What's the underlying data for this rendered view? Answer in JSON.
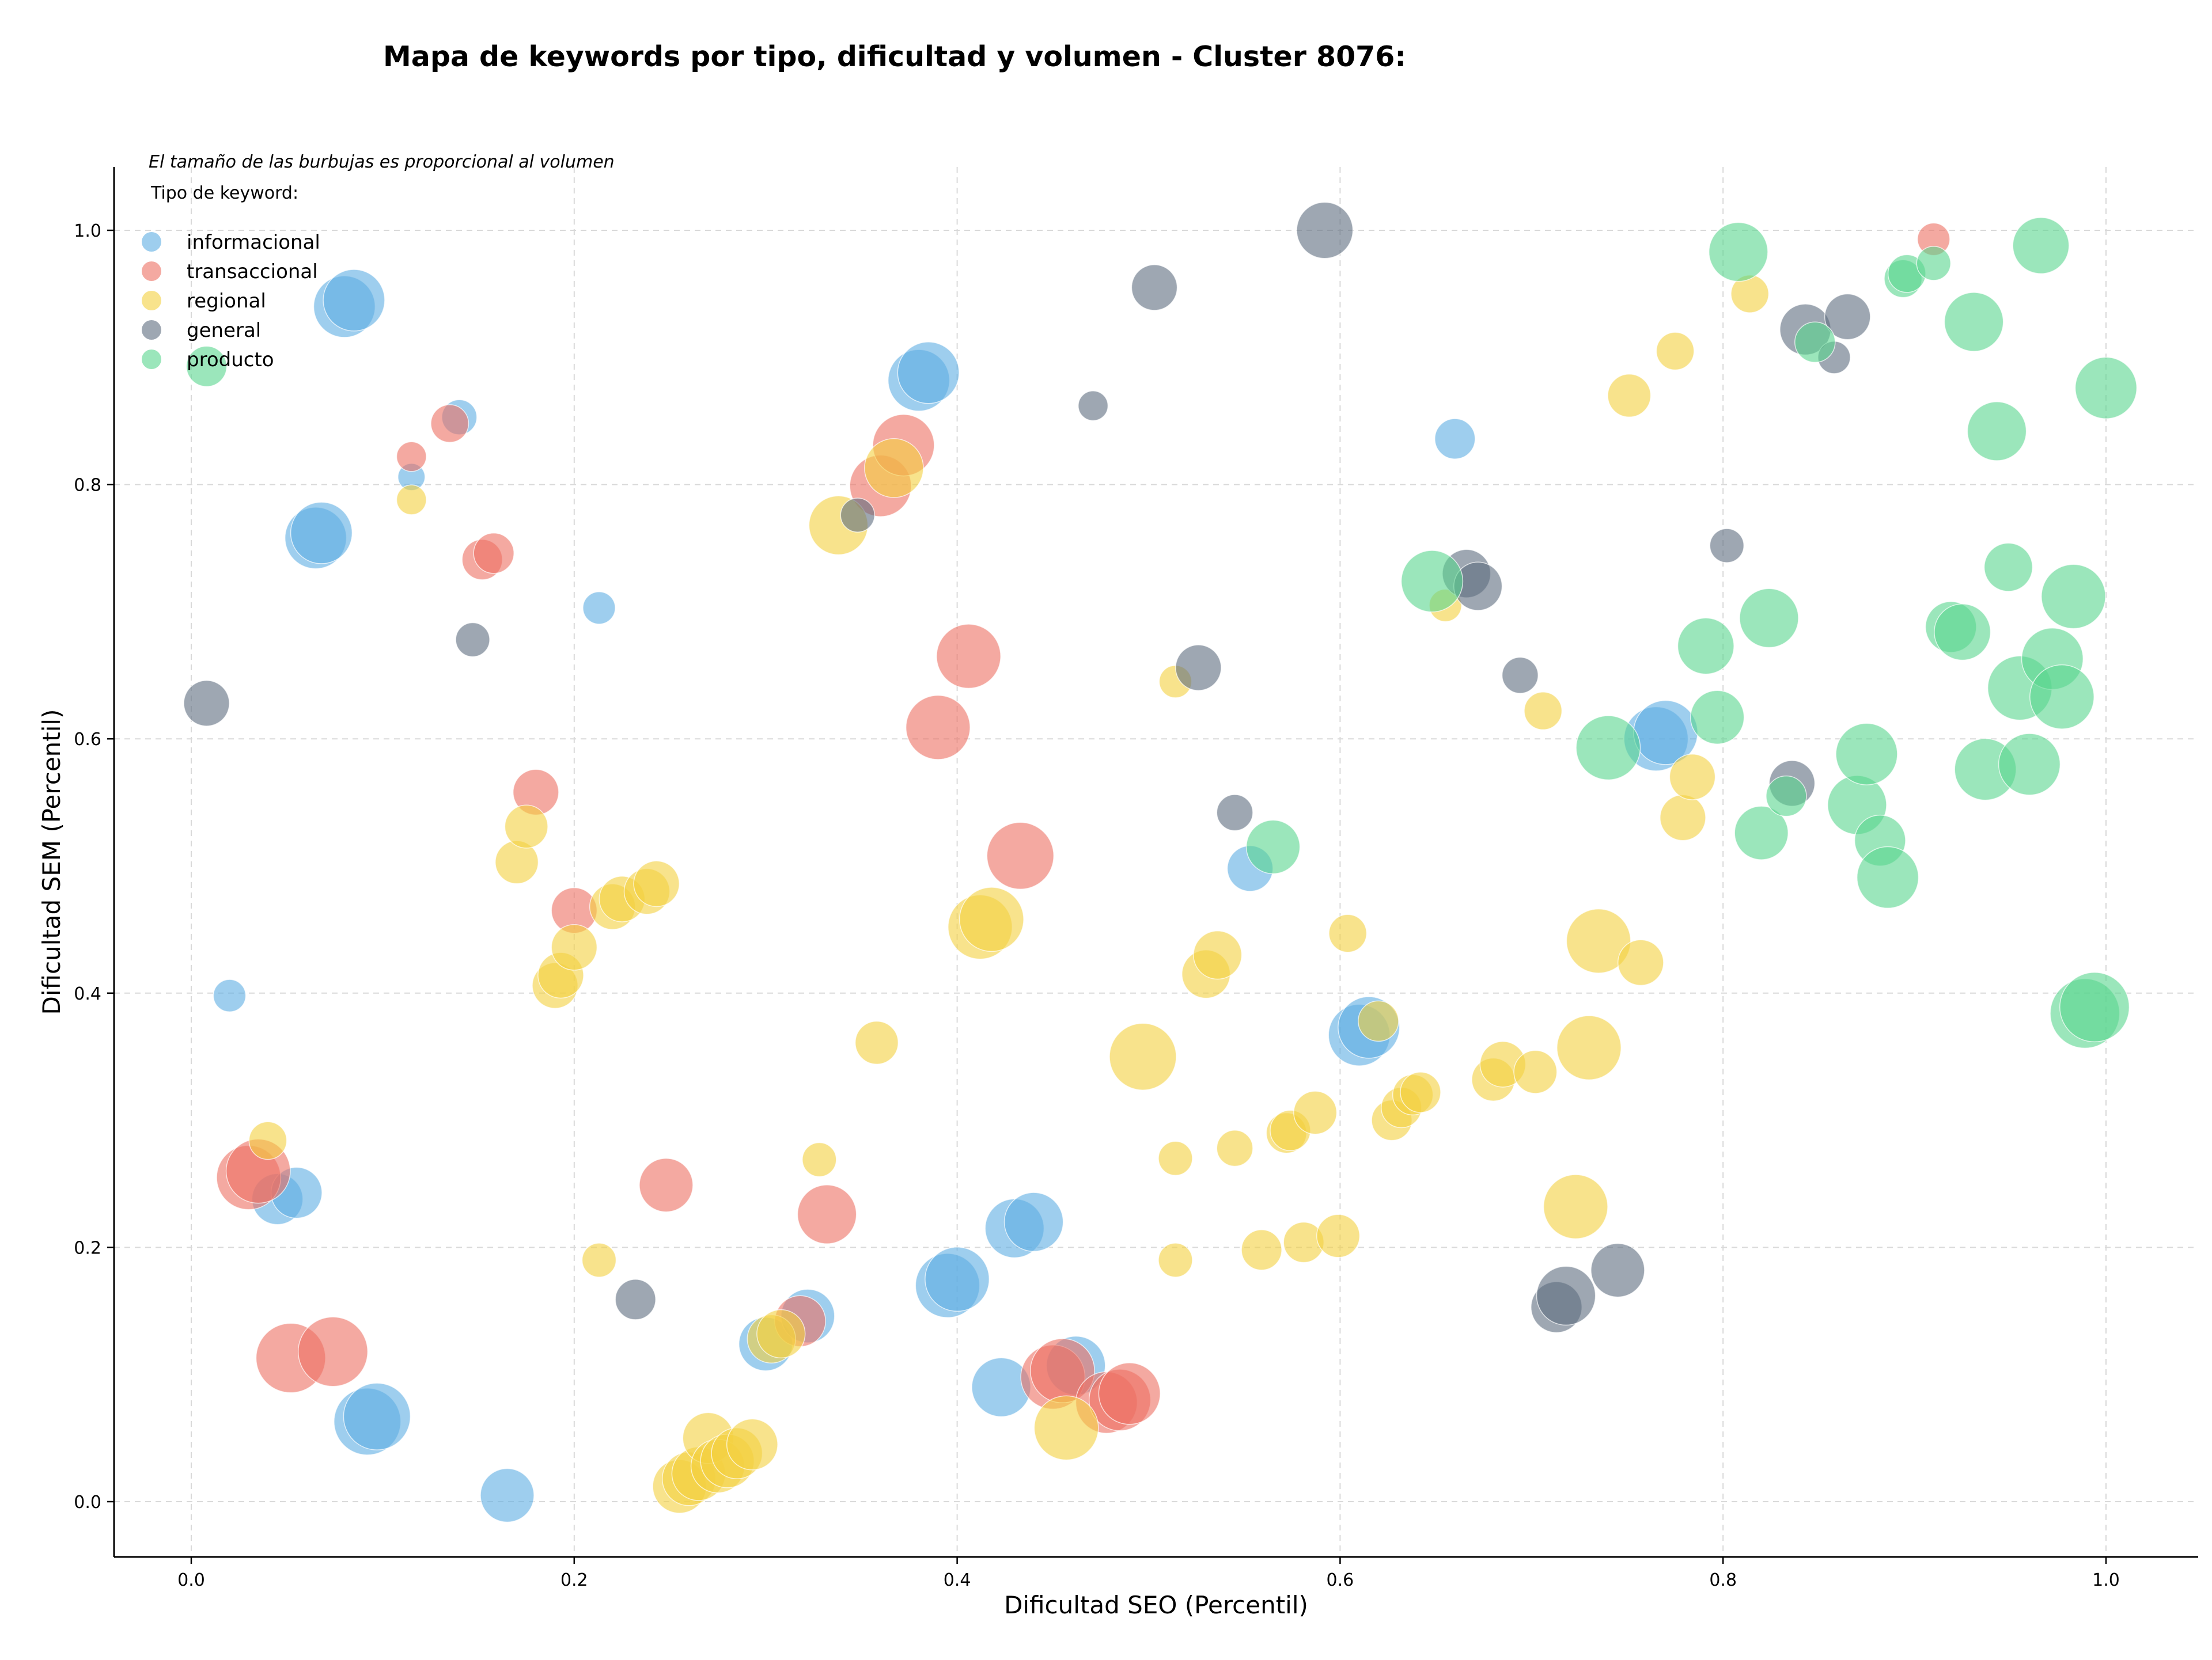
{
  "chart_data": {
    "type": "scatter",
    "title": "Mapa de keywords por tipo, dificultad y volumen - Cluster 8076:",
    "xlabel": "Dificultad SEO (Percentil)",
    "ylabel": "Dificultad SEM (Percentil)",
    "note": "El tamaño de las burbujas es proporcional al volumen",
    "legend_title": "Tipo de keyword:",
    "legend_position": "top-left",
    "xlim": [
      -0.04,
      1.05
    ],
    "ylim": [
      -0.043,
      1.05
    ],
    "x_ticks": [
      "0.0",
      "0.2",
      "0.4",
      "0.6",
      "0.8",
      "1.0"
    ],
    "y_ticks": [
      "0.0",
      "0.2",
      "0.4",
      "0.6",
      "0.8",
      "1.0"
    ],
    "grid": true,
    "series": [
      {
        "name": "informacional",
        "color": "#5DADE2",
        "points": [
          [
            0.08,
            0.94,
            0.9
          ],
          [
            0.085,
            0.945,
            0.9
          ],
          [
            0.14,
            0.853,
            0.4
          ],
          [
            0.115,
            0.806,
            0.25
          ],
          [
            0.065,
            0.758,
            0.9
          ],
          [
            0.068,
            0.762,
            0.9
          ],
          [
            0.213,
            0.703,
            0.35
          ],
          [
            0.02,
            0.398,
            0.35
          ],
          [
            0.045,
            0.238,
            0.7
          ],
          [
            0.055,
            0.243,
            0.7
          ],
          [
            0.092,
            0.063,
            1.0
          ],
          [
            0.097,
            0.067,
            1.0
          ],
          [
            0.165,
            0.005,
            0.75
          ],
          [
            0.38,
            0.882,
            0.9
          ],
          [
            0.385,
            0.888,
            0.9
          ],
          [
            0.66,
            0.836,
            0.5
          ],
          [
            0.3,
            0.124,
            0.75
          ],
          [
            0.322,
            0.146,
            0.75
          ],
          [
            0.395,
            0.17,
            0.95
          ],
          [
            0.4,
            0.175,
            0.95
          ],
          [
            0.43,
            0.215,
            0.85
          ],
          [
            0.44,
            0.22,
            0.85
          ],
          [
            0.423,
            0.09,
            0.85
          ],
          [
            0.462,
            0.107,
            0.85
          ],
          [
            0.553,
            0.498,
            0.6
          ],
          [
            0.61,
            0.367,
            0.9
          ],
          [
            0.615,
            0.373,
            0.9
          ],
          [
            0.765,
            0.6,
            0.95
          ],
          [
            0.77,
            0.605,
            0.95
          ]
        ]
      },
      {
        "name": "transaccional",
        "color": "#EC7063",
        "points": [
          [
            0.135,
            0.848,
            0.45
          ],
          [
            0.115,
            0.822,
            0.3
          ],
          [
            0.152,
            0.741,
            0.5
          ],
          [
            0.158,
            0.746,
            0.5
          ],
          [
            0.03,
            0.255,
            0.95
          ],
          [
            0.035,
            0.26,
            0.95
          ],
          [
            0.052,
            0.113,
            1.05
          ],
          [
            0.074,
            0.118,
            1.05
          ],
          [
            0.18,
            0.558,
            0.6
          ],
          [
            0.2,
            0.465,
            0.6
          ],
          [
            0.248,
            0.249,
            0.75
          ],
          [
            0.332,
            0.226,
            0.85
          ],
          [
            0.318,
            0.142,
            0.7
          ],
          [
            0.36,
            0.799,
            0.9
          ],
          [
            0.372,
            0.831,
            0.9
          ],
          [
            0.39,
            0.609,
            0.95
          ],
          [
            0.406,
            0.665,
            0.95
          ],
          [
            0.433,
            0.508,
            1.0
          ],
          [
            0.45,
            0.098,
            0.95
          ],
          [
            0.455,
            0.103,
            0.95
          ],
          [
            0.478,
            0.078,
            0.9
          ],
          [
            0.485,
            0.08,
            0.9
          ],
          [
            0.49,
            0.085,
            0.9
          ],
          [
            0.91,
            0.993,
            0.35
          ]
        ]
      },
      {
        "name": "regional",
        "color": "#F4D03F",
        "points": [
          [
            0.115,
            0.788,
            0.3
          ],
          [
            0.338,
            0.768,
            0.85
          ],
          [
            0.367,
            0.813,
            0.85
          ],
          [
            0.17,
            0.503,
            0.55
          ],
          [
            0.175,
            0.531,
            0.55
          ],
          [
            0.19,
            0.406,
            0.6
          ],
          [
            0.193,
            0.414,
            0.6
          ],
          [
            0.2,
            0.436,
            0.6
          ],
          [
            0.22,
            0.468,
            0.6
          ],
          [
            0.225,
            0.474,
            0.6
          ],
          [
            0.238,
            0.48,
            0.6
          ],
          [
            0.243,
            0.486,
            0.6
          ],
          [
            0.04,
            0.284,
            0.45
          ],
          [
            0.213,
            0.19,
            0.38
          ],
          [
            0.328,
            0.269,
            0.38
          ],
          [
            0.358,
            0.361,
            0.55
          ],
          [
            0.255,
            0.012,
            0.75
          ],
          [
            0.26,
            0.018,
            0.75
          ],
          [
            0.265,
            0.022,
            0.75
          ],
          [
            0.27,
            0.05,
            0.7
          ],
          [
            0.275,
            0.028,
            0.75
          ],
          [
            0.28,
            0.032,
            0.75
          ],
          [
            0.285,
            0.038,
            0.7
          ],
          [
            0.293,
            0.045,
            0.7
          ],
          [
            0.303,
            0.128,
            0.65
          ],
          [
            0.308,
            0.132,
            0.65
          ],
          [
            0.412,
            0.452,
            0.95
          ],
          [
            0.418,
            0.458,
            0.95
          ],
          [
            0.457,
            0.058,
            0.95
          ],
          [
            0.497,
            0.35,
            1.0
          ],
          [
            0.514,
            0.27,
            0.38
          ],
          [
            0.514,
            0.19,
            0.38
          ],
          [
            0.514,
            0.645,
            0.35
          ],
          [
            0.53,
            0.415,
            0.65
          ],
          [
            0.536,
            0.43,
            0.65
          ],
          [
            0.545,
            0.278,
            0.42
          ],
          [
            0.559,
            0.198,
            0.5
          ],
          [
            0.572,
            0.29,
            0.5
          ],
          [
            0.574,
            0.292,
            0.5
          ],
          [
            0.581,
            0.204,
            0.5
          ],
          [
            0.587,
            0.306,
            0.55
          ],
          [
            0.599,
            0.209,
            0.55
          ],
          [
            0.604,
            0.447,
            0.45
          ],
          [
            0.62,
            0.378,
            0.5
          ],
          [
            0.627,
            0.3,
            0.5
          ],
          [
            0.632,
            0.31,
            0.5
          ],
          [
            0.638,
            0.32,
            0.5
          ],
          [
            0.642,
            0.322,
            0.5
          ],
          [
            0.655,
            0.705,
            0.35
          ],
          [
            0.68,
            0.332,
            0.55
          ],
          [
            0.685,
            0.344,
            0.6
          ],
          [
            0.702,
            0.338,
            0.55
          ],
          [
            0.706,
            0.622,
            0.45
          ],
          [
            0.723,
            0.232,
            0.95
          ],
          [
            0.73,
            0.357,
            0.95
          ],
          [
            0.735,
            0.441,
            0.95
          ],
          [
            0.751,
            0.87,
            0.55
          ],
          [
            0.757,
            0.424,
            0.6
          ],
          [
            0.775,
            0.905,
            0.45
          ],
          [
            0.779,
            0.538,
            0.6
          ],
          [
            0.784,
            0.57,
            0.6
          ],
          [
            0.814,
            0.95,
            0.45
          ]
        ]
      },
      {
        "name": "general",
        "color": "#5D6D7E",
        "points": [
          [
            0.592,
            1.0,
            0.8
          ],
          [
            0.503,
            0.955,
            0.6
          ],
          [
            0.471,
            0.862,
            0.3
          ],
          [
            0.147,
            0.678,
            0.38
          ],
          [
            0.008,
            0.628,
            0.6
          ],
          [
            0.232,
            0.159,
            0.5
          ],
          [
            0.348,
            0.776,
            0.38
          ],
          [
            0.526,
            0.656,
            0.6
          ],
          [
            0.545,
            0.542,
            0.42
          ],
          [
            0.666,
            0.73,
            0.65
          ],
          [
            0.672,
            0.72,
            0.65
          ],
          [
            0.694,
            0.65,
            0.42
          ],
          [
            0.713,
            0.153,
            0.7
          ],
          [
            0.718,
            0.162,
            0.85
          ],
          [
            0.745,
            0.182,
            0.75
          ],
          [
            0.802,
            0.752,
            0.38
          ],
          [
            0.836,
            0.565,
            0.6
          ],
          [
            0.843,
            0.922,
            0.7
          ],
          [
            0.858,
            0.9,
            0.35
          ],
          [
            0.865,
            0.932,
            0.6
          ]
        ]
      },
      {
        "name": "producto",
        "color": "#58D68D",
        "points": [
          [
            0.008,
            0.893,
            0.5
          ],
          [
            0.565,
            0.515,
            0.75
          ],
          [
            0.648,
            0.724,
            0.9
          ],
          [
            0.74,
            0.593,
            0.95
          ],
          [
            0.791,
            0.673,
            0.8
          ],
          [
            0.797,
            0.617,
            0.75
          ],
          [
            0.808,
            0.983,
            0.85
          ],
          [
            0.82,
            0.526,
            0.75
          ],
          [
            0.824,
            0.695,
            0.85
          ],
          [
            0.833,
            0.555,
            0.5
          ],
          [
            0.848,
            0.912,
            0.5
          ],
          [
            0.87,
            0.548,
            0.85
          ],
          [
            0.875,
            0.588,
            0.9
          ],
          [
            0.882,
            0.52,
            0.7
          ],
          [
            0.886,
            0.491,
            0.9
          ],
          [
            0.894,
            0.962,
            0.45
          ],
          [
            0.896,
            0.966,
            0.45
          ],
          [
            0.91,
            0.974,
            0.38
          ],
          [
            0.919,
            0.688,
            0.7
          ],
          [
            0.925,
            0.684,
            0.8
          ],
          [
            0.931,
            0.928,
            0.85
          ],
          [
            0.937,
            0.576,
            0.9
          ],
          [
            0.943,
            0.842,
            0.85
          ],
          [
            0.949,
            0.735,
            0.65
          ],
          [
            0.955,
            0.64,
            0.95
          ],
          [
            0.96,
            0.58,
            0.9
          ],
          [
            0.966,
            0.988,
            0.8
          ],
          [
            0.972,
            0.663,
            0.9
          ],
          [
            0.977,
            0.633,
            0.95
          ],
          [
            0.983,
            0.712,
            0.95
          ],
          [
            0.989,
            0.384,
            1.05
          ],
          [
            0.994,
            0.389,
            1.05
          ],
          [
            1.0,
            0.876,
            0.9
          ]
        ]
      }
    ]
  }
}
